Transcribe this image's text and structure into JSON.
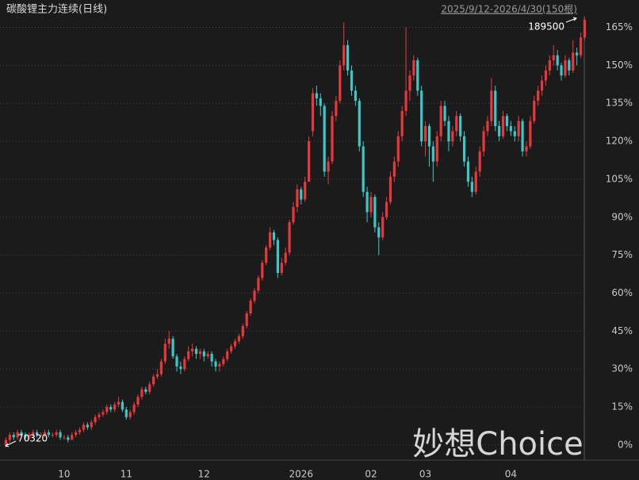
{
  "chart_data": {
    "type": "candlestick",
    "title": "碳酸锂主力连续(日线)",
    "subtitle": "2025/9/12-2026/4/30(150根)",
    "watermark": "妙想Choice",
    "annotations": [
      "189500",
      "70320"
    ],
    "categories": [
      null,
      null,
      null,
      null,
      null,
      null,
      null,
      null,
      null,
      null,
      null,
      null,
      null,
      null,
      null,
      "10",
      null,
      null,
      null,
      null,
      null,
      null,
      null,
      null,
      null,
      null,
      null,
      null,
      null,
      null,
      null,
      "11",
      null,
      null,
      null,
      null,
      null,
      null,
      null,
      null,
      null,
      null,
      null,
      null,
      null,
      null,
      null,
      null,
      null,
      null,
      null,
      "12",
      null,
      null,
      null,
      null,
      null,
      null,
      null,
      null,
      null,
      null,
      null,
      null,
      null,
      null,
      null,
      null,
      null,
      null,
      null,
      null,
      null,
      null,
      null,
      null,
      "2026",
      null,
      null,
      null,
      null,
      null,
      null,
      null,
      null,
      null,
      null,
      null,
      null,
      null,
      null,
      null,
      null,
      null,
      "02",
      null,
      null,
      null,
      null,
      null,
      null,
      null,
      null,
      null,
      null,
      null,
      null,
      null,
      "03",
      null,
      null,
      null,
      null,
      null,
      null,
      null,
      null,
      null,
      null,
      null,
      null,
      null,
      null,
      null,
      null,
      null,
      null,
      null,
      null,
      null,
      "04",
      null,
      null,
      null,
      null,
      null,
      null,
      null,
      null,
      null,
      null,
      null,
      null,
      null,
      null,
      null,
      null,
      null,
      null
    ],
    "up_color": "#e8383d",
    "down_color": "#3cc8c8",
    "series": [
      {
        "ohlc": [
          [
            0,
            3,
            -1,
            2
          ],
          [
            2,
            5,
            1,
            4
          ],
          [
            4,
            5,
            2,
            3
          ],
          [
            3,
            6,
            2,
            5
          ],
          [
            5,
            6,
            3,
            4
          ],
          [
            4,
            5,
            2,
            3
          ],
          [
            3,
            5,
            2,
            4
          ],
          [
            4,
            6,
            3,
            5
          ],
          [
            5,
            6,
            3,
            4
          ],
          [
            4,
            5,
            3,
            4
          ],
          [
            4,
            6,
            3,
            5
          ],
          [
            5,
            6,
            3,
            4
          ],
          [
            4,
            5,
            3,
            4
          ],
          [
            4,
            6,
            3,
            5
          ],
          [
            5,
            6,
            2,
            3
          ],
          [
            3,
            4,
            2,
            3
          ],
          [
            3,
            4,
            1,
            2
          ],
          [
            2,
            5,
            2,
            4
          ],
          [
            4,
            6,
            3,
            5
          ],
          [
            5,
            7,
            4,
            6
          ],
          [
            6,
            9,
            5,
            8
          ],
          [
            8,
            9,
            6,
            7
          ],
          [
            7,
            10,
            6,
            9
          ],
          [
            9,
            12,
            8,
            11
          ],
          [
            11,
            13,
            10,
            12
          ],
          [
            12,
            14,
            11,
            13
          ],
          [
            13,
            16,
            12,
            15
          ],
          [
            15,
            16,
            13,
            14
          ],
          [
            14,
            17,
            13,
            16
          ],
          [
            16,
            19,
            15,
            17
          ],
          [
            17,
            18,
            13,
            14
          ],
          [
            14,
            15,
            10,
            11
          ],
          [
            11,
            14,
            10,
            13
          ],
          [
            13,
            17,
            12,
            16
          ],
          [
            16,
            20,
            15,
            19
          ],
          [
            19,
            23,
            18,
            22
          ],
          [
            22,
            23,
            20,
            21
          ],
          [
            21,
            25,
            20,
            24
          ],
          [
            24,
            28,
            23,
            27
          ],
          [
            27,
            30,
            26,
            28
          ],
          [
            28,
            34,
            27,
            33
          ],
          [
            33,
            42,
            32,
            40
          ],
          [
            40,
            45,
            38,
            42
          ],
          [
            42,
            43,
            34,
            35
          ],
          [
            35,
            36,
            29,
            31
          ],
          [
            31,
            33,
            28,
            30
          ],
          [
            30,
            35,
            29,
            34
          ],
          [
            34,
            39,
            33,
            37
          ],
          [
            37,
            40,
            35,
            38
          ],
          [
            38,
            39,
            34,
            36
          ],
          [
            36,
            38,
            34,
            37
          ],
          [
            37,
            38,
            33,
            35
          ],
          [
            35,
            37,
            34,
            36
          ],
          [
            36,
            37,
            31,
            33
          ],
          [
            33,
            34,
            29,
            31
          ],
          [
            31,
            33,
            29,
            32
          ],
          [
            32,
            35,
            31,
            34
          ],
          [
            34,
            38,
            33,
            37
          ],
          [
            37,
            40,
            36,
            39
          ],
          [
            39,
            42,
            38,
            41
          ],
          [
            41,
            44,
            40,
            43
          ],
          [
            43,
            48,
            42,
            47
          ],
          [
            47,
            53,
            46,
            52
          ],
          [
            52,
            58,
            51,
            57
          ],
          [
            57,
            62,
            56,
            61
          ],
          [
            61,
            67,
            60,
            66
          ],
          [
            66,
            73,
            65,
            72
          ],
          [
            72,
            79,
            71,
            78
          ],
          [
            78,
            86,
            77,
            84
          ],
          [
            84,
            85,
            79,
            81
          ],
          [
            81,
            82,
            66,
            68
          ],
          [
            68,
            74,
            67,
            72
          ],
          [
            72,
            78,
            71,
            76
          ],
          [
            76,
            89,
            75,
            88
          ],
          [
            88,
            96,
            87,
            94
          ],
          [
            94,
            103,
            92,
            101
          ],
          [
            101,
            102,
            95,
            97
          ],
          [
            97,
            106,
            96,
            104
          ],
          [
            104,
            122,
            104,
            120
          ],
          [
            124,
            141,
            122,
            139
          ],
          [
            139,
            142,
            134,
            137
          ],
          [
            137,
            139,
            130,
            134
          ],
          [
            134,
            135,
            106,
            108
          ],
          [
            108,
            114,
            103,
            112
          ],
          [
            112,
            132,
            111,
            130
          ],
          [
            130,
            138,
            128,
            136
          ],
          [
            136,
            152,
            135,
            150
          ],
          [
            150,
            167,
            148,
            158
          ],
          [
            158,
            160,
            146,
            148
          ],
          [
            148,
            150,
            138,
            140
          ],
          [
            140,
            142,
            134,
            136
          ],
          [
            136,
            137,
            116,
            118
          ],
          [
            118,
            120,
            98,
            100
          ],
          [
            100,
            102,
            88,
            92
          ],
          [
            92,
            100,
            90,
            98
          ],
          [
            98,
            99,
            84,
            86
          ],
          [
            86,
            88,
            75,
            82
          ],
          [
            82,
            92,
            81,
            90
          ],
          [
            90,
            98,
            89,
            96
          ],
          [
            96,
            108,
            95,
            106
          ],
          [
            106,
            114,
            104,
            112
          ],
          [
            112,
            124,
            110,
            122
          ],
          [
            122,
            134,
            120,
            132
          ],
          [
            132,
            165,
            130,
            140
          ],
          [
            140,
            148,
            136,
            146
          ],
          [
            146,
            154,
            144,
            152
          ],
          [
            152,
            153,
            138,
            140
          ],
          [
            140,
            142,
            118,
            120
          ],
          [
            120,
            128,
            114,
            126
          ],
          [
            126,
            127,
            110,
            118
          ],
          [
            118,
            120,
            104,
            112
          ],
          [
            112,
            124,
            110,
            122
          ],
          [
            122,
            136,
            120,
            134
          ],
          [
            134,
            136,
            126,
            128
          ],
          [
            128,
            130,
            116,
            120
          ],
          [
            120,
            126,
            118,
            124
          ],
          [
            124,
            132,
            122,
            130
          ],
          [
            130,
            131,
            120,
            122
          ],
          [
            122,
            124,
            110,
            112
          ],
          [
            112,
            114,
            102,
            104
          ],
          [
            104,
            106,
            98,
            100
          ],
          [
            100,
            110,
            99,
            108
          ],
          [
            108,
            118,
            106,
            116
          ],
          [
            116,
            126,
            114,
            124
          ],
          [
            124,
            130,
            122,
            128
          ],
          [
            128,
            145,
            126,
            140
          ],
          [
            140,
            142,
            124,
            126
          ],
          [
            126,
            128,
            120,
            122
          ],
          [
            122,
            132,
            121,
            130
          ],
          [
            130,
            131,
            124,
            126
          ],
          [
            126,
            128,
            122,
            124
          ],
          [
            124,
            126,
            120,
            122
          ],
          [
            122,
            130,
            120,
            128
          ],
          [
            128,
            129,
            114,
            116
          ],
          [
            116,
            120,
            114,
            118
          ],
          [
            118,
            130,
            117,
            128
          ],
          [
            128,
            138,
            127,
            136
          ],
          [
            136,
            142,
            134,
            140
          ],
          [
            140,
            146,
            138,
            144
          ],
          [
            144,
            150,
            142,
            148
          ],
          [
            148,
            154,
            146,
            152
          ],
          [
            152,
            158,
            150,
            154
          ],
          [
            154,
            156,
            148,
            150
          ],
          [
            150,
            151,
            144,
            146
          ],
          [
            146,
            154,
            145,
            152
          ],
          [
            152,
            153,
            146,
            148
          ],
          [
            148,
            160,
            147,
            155
          ],
          [
            155,
            157,
            150,
            154
          ],
          [
            154,
            163,
            153,
            161
          ],
          [
            161,
            169,
            160,
            168
          ]
        ]
      }
    ],
    "ylim": [
      -6,
      170
    ],
    "yticks": [
      {
        "value": 0,
        "label": "0%"
      },
      {
        "value": 15,
        "label": "15%"
      },
      {
        "value": 30,
        "label": "30%"
      },
      {
        "value": 45,
        "label": "45%"
      },
      {
        "value": 60,
        "label": "60%"
      },
      {
        "value": 75,
        "label": "75%"
      },
      {
        "value": 90,
        "label": "90%"
      },
      {
        "value": 105,
        "label": "105%"
      },
      {
        "value": 120,
        "label": "120%"
      },
      {
        "value": 135,
        "label": "135%"
      },
      {
        "value": 150,
        "label": "150%"
      },
      {
        "value": 165,
        "label": "165%"
      }
    ],
    "grid": true
  }
}
